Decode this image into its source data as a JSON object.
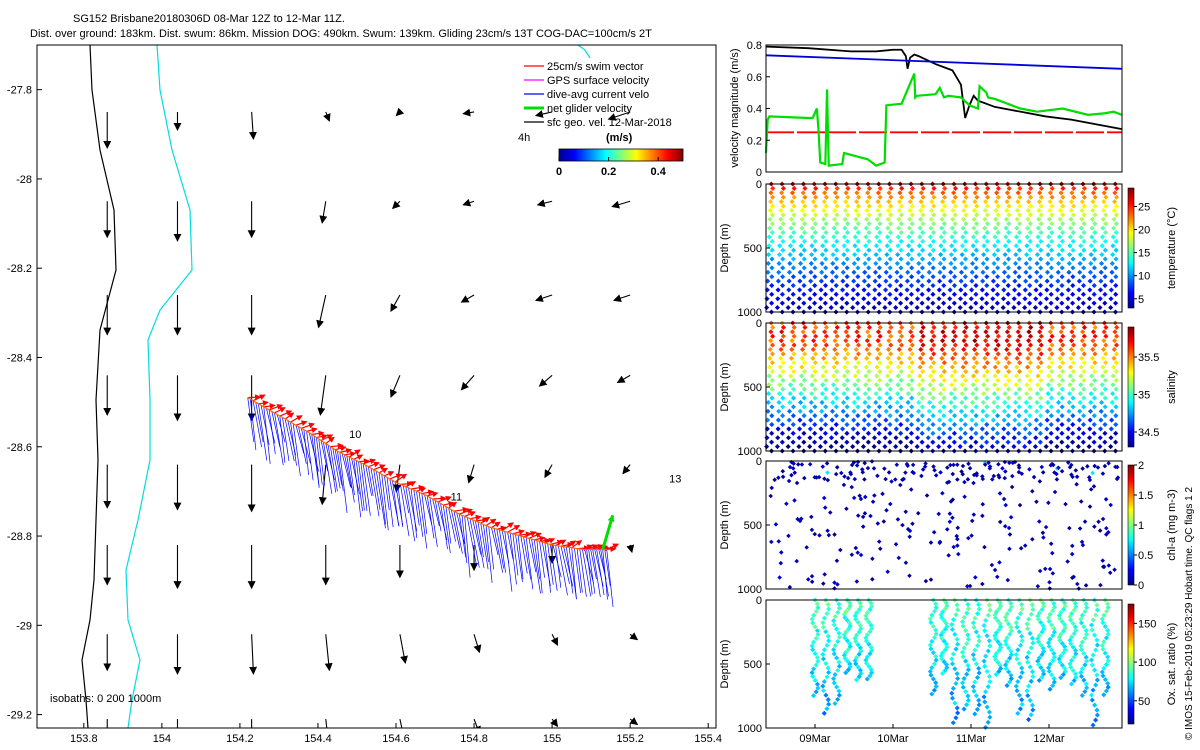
{
  "header": {
    "line1": "SG152 Brisbane20180306D 08-Mar 12Z to 12-Mar 11Z.",
    "line2": "Dist. over ground: 183km. Dist. swum: 86km. Mission DOG: 490km. Swum: 139km. Gliding 23cm/s 13T COG-DAC=100cm/s 2T"
  },
  "watermark": "© IMOS 15-Feb-2019 05:23:29 Hobart time. QC flags 1  2",
  "chart_data": [
    {
      "type": "map",
      "name": "glider-track-map",
      "xlim": [
        153.68,
        155.42
      ],
      "ylim": [
        -29.23,
        -27.7
      ],
      "xticks": [
        "153.8",
        "154",
        "154.2",
        "154.4",
        "154.6",
        "154.8",
        "155",
        "155.2",
        "155.4"
      ],
      "yticks": [
        "-27.8",
        "-28",
        "-28.2",
        "-28.4",
        "-28.6",
        "-28.8",
        "-29",
        "-29.2"
      ],
      "legend": {
        "items": [
          {
            "label": "25cm/s swim vector",
            "color": "#ff0000"
          },
          {
            "label": "GPS surface velocity",
            "color": "#ff00ff"
          },
          {
            "label": "dive-avg current velo",
            "color": "#0000ff"
          },
          {
            "label": "net glider velocity",
            "color": "#00dd00"
          },
          {
            "label": "sfc geo. vel. 12-Mar-2018",
            "color": "#000000"
          }
        ],
        "time_label": "4h",
        "colorbar_title": "(m/s)",
        "colorbar_ticks": [
          "0",
          "0.2",
          "0.4"
        ],
        "colorbar_range": [
          0,
          0.5
        ]
      },
      "isobaths_label": "isobaths: 0  200  1000m",
      "day_labels": [
        {
          "text": "10",
          "lon": 154.48,
          "lat": -28.58
        },
        {
          "text": "11",
          "lon": 154.74,
          "lat": -28.72
        },
        {
          "text": "13",
          "lon": 155.3,
          "lat": -28.68
        }
      ],
      "track": [
        [
          154.22,
          -28.49
        ],
        [
          154.3,
          -28.53
        ],
        [
          154.38,
          -28.57
        ],
        [
          154.45,
          -28.61
        ],
        [
          154.52,
          -28.64
        ],
        [
          154.6,
          -28.68
        ],
        [
          154.68,
          -28.71
        ],
        [
          154.76,
          -28.75
        ],
        [
          154.84,
          -28.78
        ],
        [
          154.92,
          -28.8
        ],
        [
          155.0,
          -28.82
        ],
        [
          155.08,
          -28.83
        ],
        [
          155.14,
          -28.83
        ]
      ],
      "current_offset_deg": [
        0.02,
        -0.12
      ],
      "surface_field_lon": [
        153.86,
        154.04,
        154.23,
        154.42,
        154.61,
        154.8,
        155.0,
        155.2
      ],
      "surface_field_lat": [
        -27.85,
        -28.05,
        -28.26,
        -28.44,
        -28.64,
        -28.82,
        -29.02,
        -29.21
      ],
      "surface_field_u": [
        [
          0.0,
          0.0,
          0.01,
          0.02,
          -0.02,
          -0.06,
          -0.09,
          -0.12
        ],
        [
          0.0,
          0.0,
          0.0,
          -0.02,
          -0.04,
          -0.06,
          -0.08,
          -0.1
        ],
        [
          0.0,
          0.0,
          0.0,
          -0.04,
          -0.05,
          -0.07,
          -0.09,
          -0.09
        ],
        [
          0.0,
          0.0,
          0.0,
          -0.03,
          -0.05,
          -0.07,
          -0.07,
          -0.07
        ],
        [
          0.0,
          0.0,
          0.0,
          -0.02,
          -0.02,
          -0.03,
          -0.04,
          -0.04
        ],
        [
          0.0,
          0.0,
          0.0,
          0.0,
          0.0,
          0.0,
          0.0,
          0.01
        ],
        [
          0.0,
          0.0,
          0.01,
          0.02,
          0.03,
          0.03,
          0.03,
          0.04
        ],
        [
          0.0,
          0.0,
          0.0,
          0.02,
          0.03,
          0.03,
          0.03,
          0.04
        ]
      ],
      "surface_field_v": [
        [
          -0.2,
          -0.1,
          -0.15,
          -0.05,
          -0.02,
          -0.01,
          -0.02,
          -0.04
        ],
        [
          -0.2,
          -0.22,
          -0.2,
          -0.12,
          -0.04,
          -0.02,
          -0.02,
          -0.03
        ],
        [
          -0.22,
          -0.22,
          -0.22,
          -0.18,
          -0.09,
          -0.04,
          -0.03,
          -0.03
        ],
        [
          -0.22,
          -0.25,
          -0.25,
          -0.22,
          -0.12,
          -0.08,
          -0.06,
          -0.04
        ],
        [
          -0.24,
          -0.25,
          -0.26,
          -0.22,
          -0.15,
          -0.1,
          -0.07,
          -0.05
        ],
        [
          -0.22,
          -0.24,
          -0.24,
          -0.22,
          -0.18,
          -0.14,
          -0.1,
          -0.04
        ],
        [
          -0.2,
          -0.22,
          -0.22,
          -0.2,
          -0.16,
          -0.1,
          -0.06,
          -0.03
        ],
        [
          -0.2,
          -0.22,
          -0.2,
          -0.18,
          -0.14,
          -0.08,
          -0.04,
          -0.03
        ]
      ]
    },
    {
      "type": "line",
      "name": "velocity-magnitude",
      "ylabel": "velocity magnitude (m/s)",
      "ylim": [
        0,
        0.8
      ],
      "yticks": [
        "0",
        "0.2",
        "0.4",
        "0.6",
        "0.8"
      ],
      "xlim": [
        0,
        4.2
      ],
      "series": [
        {
          "name": "black",
          "color": "#000000",
          "x": [
            0,
            0.5,
            1.0,
            1.3,
            1.5,
            1.6,
            1.65,
            1.67,
            1.7,
            1.75,
            1.8,
            2.0,
            2.1,
            2.2,
            2.3,
            2.35,
            2.4,
            2.45,
            2.5,
            2.7,
            3.0,
            3.3,
            3.6,
            3.9,
            4.2
          ],
          "y": [
            0.79,
            0.78,
            0.76,
            0.76,
            0.77,
            0.77,
            0.73,
            0.65,
            0.72,
            0.74,
            0.73,
            0.68,
            0.66,
            0.64,
            0.55,
            0.34,
            0.42,
            0.48,
            0.45,
            0.41,
            0.38,
            0.35,
            0.33,
            0.3,
            0.27
          ]
        },
        {
          "name": "blue",
          "color": "#0000dd",
          "x": [
            0,
            4.2
          ],
          "y": [
            0.735,
            0.65
          ]
        },
        {
          "name": "red",
          "color": "#ff0000",
          "x": [
            0,
            4.2
          ],
          "y": [
            0.25,
            0.25
          ]
        },
        {
          "name": "green",
          "color": "#00dd00",
          "x": [
            0,
            0.02,
            0.04,
            0.5,
            0.55,
            0.6,
            0.62,
            0.64,
            0.7,
            0.72,
            0.74,
            0.9,
            0.92,
            1.2,
            1.3,
            1.4,
            1.42,
            1.6,
            1.75,
            1.76,
            1.78,
            2.0,
            2.05,
            2.1,
            2.15,
            2.3,
            2.4,
            2.5,
            2.52,
            2.6,
            2.62,
            2.7,
            2.9,
            3.0,
            3.2,
            3.5,
            3.8,
            4.0,
            4.1,
            4.2
          ],
          "y": [
            0.12,
            0.33,
            0.35,
            0.34,
            0.34,
            0.4,
            0.26,
            0.06,
            0.05,
            0.52,
            0.04,
            0.05,
            0.12,
            0.08,
            0.04,
            0.06,
            0.42,
            0.43,
            0.62,
            0.47,
            0.48,
            0.49,
            0.53,
            0.47,
            0.48,
            0.47,
            0.42,
            0.4,
            0.54,
            0.5,
            0.47,
            0.46,
            0.42,
            0.4,
            0.38,
            0.4,
            0.36,
            0.37,
            0.38,
            0.36
          ]
        }
      ]
    },
    {
      "type": "scatter",
      "name": "temperature-section",
      "ylabel": "Depth (m)",
      "ylim": [
        1000,
        0
      ],
      "yticks": [
        "0",
        "500",
        "1000"
      ],
      "colorbar_label": "temperature (°C)",
      "colorbar_ticks": [
        "5",
        "10",
        "15",
        "20",
        "25"
      ],
      "colorbar_range": [
        3,
        29
      ]
    },
    {
      "type": "scatter",
      "name": "salinity-section",
      "ylabel": "Depth (m)",
      "ylim": [
        1000,
        0
      ],
      "yticks": [
        "0",
        "500",
        "1000"
      ],
      "colorbar_label": "salinity",
      "colorbar_ticks": [
        "34.5",
        "35",
        "35.5"
      ],
      "colorbar_range": [
        34.3,
        35.9
      ]
    },
    {
      "type": "scatter",
      "name": "chla-section",
      "ylabel": "Depth (m)",
      "ylim": [
        1000,
        0
      ],
      "yticks": [
        "0",
        "500",
        "1000"
      ],
      "colorbar_label": "chl-a (mg m-3)",
      "colorbar_ticks": [
        "0",
        "0.5",
        "1",
        "1.5",
        "2"
      ],
      "colorbar_range": [
        0,
        2
      ]
    },
    {
      "type": "scatter",
      "name": "oxygen-section",
      "ylabel": "Depth (m)",
      "ylim": [
        1000,
        0
      ],
      "yticks": [
        "0",
        "500",
        "1000"
      ],
      "colorbar_label": "Ox. sat. ratio (%)",
      "colorbar_ticks": [
        "50",
        "100",
        "150"
      ],
      "colorbar_range": [
        20,
        175
      ],
      "xticks": [
        "09Mar",
        "10Mar",
        "11Mar",
        "12Mar"
      ]
    }
  ]
}
